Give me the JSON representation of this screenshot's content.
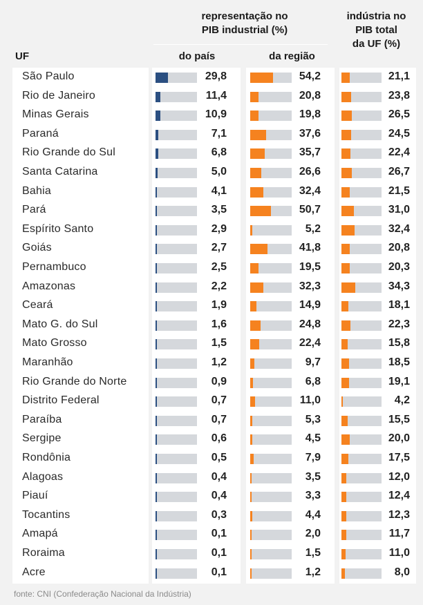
{
  "header": {
    "group_title_line1": "representação no",
    "group_title_line2": "PIB industrial (%)",
    "col_pais": "do país",
    "col_regiao": "da região",
    "col_industria_line1": "indústria no",
    "col_industria_line2": "PIB total",
    "col_industria_line3": "da UF (%)",
    "col_uf": "UF"
  },
  "source": "fonte: CNI (Confederação Nacional da Indústria)",
  "colors": {
    "navy": "#2b4f81",
    "orange": "#f5821f",
    "track": "#d5d8dc"
  },
  "chart_data": {
    "type": "bar",
    "categories": [
      "São Paulo",
      "Rio de Janeiro",
      "Minas Gerais",
      "Paraná",
      "Rio Grande do Sul",
      "Santa Catarina",
      "Bahia",
      "Pará",
      "Espírito Santo",
      "Goiás",
      "Pernambuco",
      "Amazonas",
      "Ceará",
      "Mato G. do Sul",
      "Mato Grosso",
      "Maranhão",
      "Rio Grande do Norte",
      "Distrito Federal",
      "Paraíba",
      "Sergipe",
      "Rondônia",
      "Alagoas",
      "Piauí",
      "Tocantins",
      "Amapá",
      "Roraima",
      "Acre"
    ],
    "series": [
      {
        "key": "pais",
        "values": [
          29.8,
          11.4,
          10.9,
          7.1,
          6.8,
          5.0,
          4.1,
          3.5,
          2.9,
          2.7,
          2.5,
          2.2,
          1.9,
          1.6,
          1.5,
          1.2,
          0.9,
          0.7,
          0.7,
          0.6,
          0.5,
          0.4,
          0.4,
          0.3,
          0.1,
          0.1,
          0.1
        ],
        "labels": [
          "29,8",
          "11,4",
          "10,9",
          "7,1",
          "6,8",
          "5,0",
          "4,1",
          "3,5",
          "2,9",
          "2,7",
          "2,5",
          "2,2",
          "1,9",
          "1,6",
          "1,5",
          "1,2",
          "0,9",
          "0,7",
          "0,7",
          "0,6",
          "0,5",
          "0,4",
          "0,4",
          "0,3",
          "0,1",
          "0,1",
          "0,1"
        ],
        "xlim": [
          0,
          100
        ]
      },
      {
        "key": "regiao",
        "values": [
          54.2,
          20.8,
          19.8,
          37.6,
          35.7,
          26.6,
          32.4,
          50.7,
          5.2,
          41.8,
          19.5,
          32.3,
          14.9,
          24.8,
          22.4,
          9.7,
          6.8,
          11.0,
          5.3,
          4.5,
          7.9,
          3.5,
          3.3,
          4.4,
          2.0,
          1.5,
          1.2
        ],
        "labels": [
          "54,2",
          "20,8",
          "19,8",
          "37,6",
          "35,7",
          "26,6",
          "32,4",
          "50,7",
          "5,2",
          "41,8",
          "19,5",
          "32,3",
          "14,9",
          "24,8",
          "22,4",
          "9,7",
          "6,8",
          "11,0",
          "5,3",
          "4,5",
          "7,9",
          "3,5",
          "3,3",
          "4,4",
          "2,0",
          "1,5",
          "1,2"
        ],
        "xlim": [
          0,
          100
        ]
      },
      {
        "key": "industria",
        "values": [
          21.1,
          23.8,
          26.5,
          24.5,
          22.4,
          26.7,
          21.5,
          31.0,
          32.4,
          20.8,
          20.3,
          34.3,
          18.1,
          22.3,
          15.8,
          18.5,
          19.1,
          4.2,
          15.5,
          20.0,
          17.5,
          12.0,
          12.4,
          12.3,
          11.7,
          11.0,
          8.0
        ],
        "labels": [
          "21,1",
          "23,8",
          "26,5",
          "24,5",
          "22,4",
          "26,7",
          "21,5",
          "31,0",
          "32,4",
          "20,8",
          "20,3",
          "34,3",
          "18,1",
          "22,3",
          "15,8",
          "18,5",
          "19,1",
          "4,2",
          "15,5",
          "20,0",
          "17,5",
          "12,0",
          "12,4",
          "12,3",
          "11,7",
          "11,0",
          "8,0"
        ],
        "xlim": [
          0,
          100
        ]
      }
    ]
  }
}
